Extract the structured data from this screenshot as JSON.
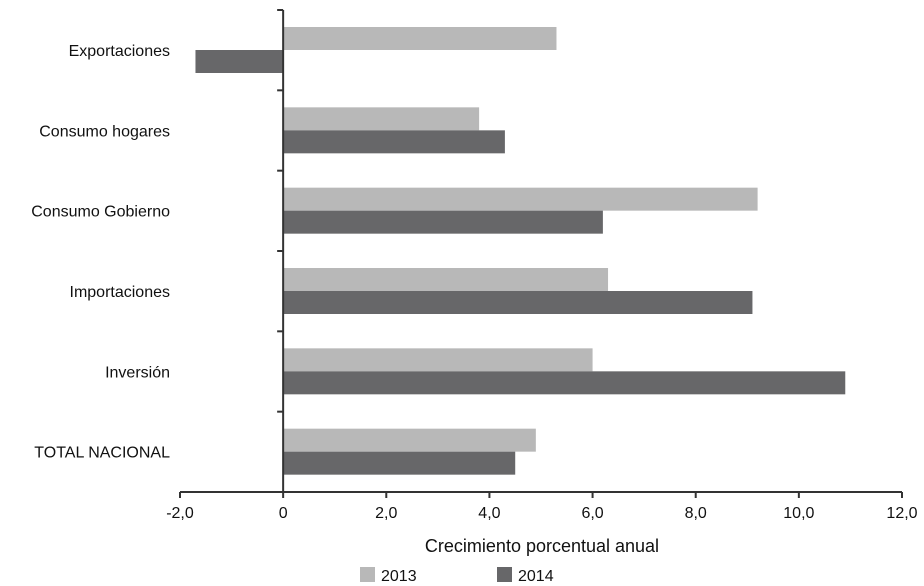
{
  "chart_data": {
    "type": "bar",
    "orientation": "horizontal",
    "categories": [
      "Exportaciones",
      "Consumo hogares",
      "Consumo Gobierno",
      "Importaciones",
      "Inversión",
      "TOTAL NACIONAL"
    ],
    "series": [
      {
        "name": "2013",
        "color": "#b8b8b8",
        "values": [
          5.3,
          3.8,
          9.2,
          6.3,
          6.0,
          4.9
        ]
      },
      {
        "name": "2014",
        "color": "#676769",
        "values": [
          -1.7,
          4.3,
          6.2,
          9.1,
          10.9,
          4.5
        ]
      }
    ],
    "xlabel": "Crecimiento porcentual anual",
    "xlim": [
      -2,
      12
    ],
    "xticks": [
      -2,
      0,
      2,
      4,
      6,
      8,
      10,
      12
    ],
    "xtick_labels": [
      "-2,0",
      "0",
      "2,0",
      "4,0",
      "6,0",
      "8,0",
      "10,0",
      "12,0"
    ],
    "legend": "bottom-center",
    "grid": false
  }
}
